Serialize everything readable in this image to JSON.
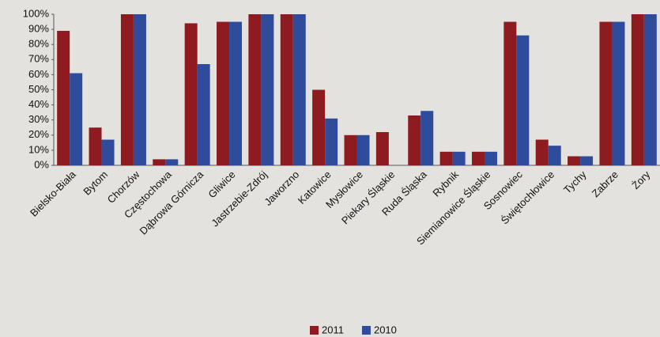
{
  "chart_data": {
    "type": "bar",
    "categories": [
      "Bielsko-Biała",
      "Bytom",
      "Chorzów",
      "Częstochowa",
      "Dąbrowa Górnicza",
      "Gliwice",
      "Jastrzebie-Zdrój",
      "Jaworzno",
      "Katowice",
      "Mysłowice",
      "Piekary Śląskie",
      "Ruda Śląska",
      "Rybnik",
      "Siemianowice Śląskie",
      "Sosnowiec",
      "Świętochłowice",
      "Tychy",
      "Zabrze",
      "Żory"
    ],
    "series": [
      {
        "name": "2011",
        "color": "#8e1b1f",
        "values": [
          89,
          25,
          100,
          4,
          94,
          95,
          100,
          100,
          50,
          20,
          22,
          33,
          9,
          9,
          95,
          17,
          6,
          95,
          100
        ]
      },
      {
        "name": "2010",
        "color": "#2f4c9c",
        "values": [
          61,
          17,
          100,
          4,
          67,
          95,
          100,
          100,
          31,
          20,
          null,
          36,
          9,
          9,
          86,
          13,
          6,
          95,
          100
        ]
      }
    ],
    "ylim": [
      0,
      100
    ],
    "yticks": [
      {
        "value": 0,
        "label": "0%"
      },
      {
        "value": 10,
        "label": "10%"
      },
      {
        "value": 20,
        "label": "20%"
      },
      {
        "value": 30,
        "label": "30%"
      },
      {
        "value": 40,
        "label": "40%"
      },
      {
        "value": 50,
        "label": "50%"
      },
      {
        "value": 60,
        "label": "60%"
      },
      {
        "value": 70,
        "label": "70%"
      },
      {
        "value": 80,
        "label": "80%"
      },
      {
        "value": 90,
        "label": "90%"
      },
      {
        "value": 100,
        "label": "100%"
      }
    ],
    "grid": false
  }
}
